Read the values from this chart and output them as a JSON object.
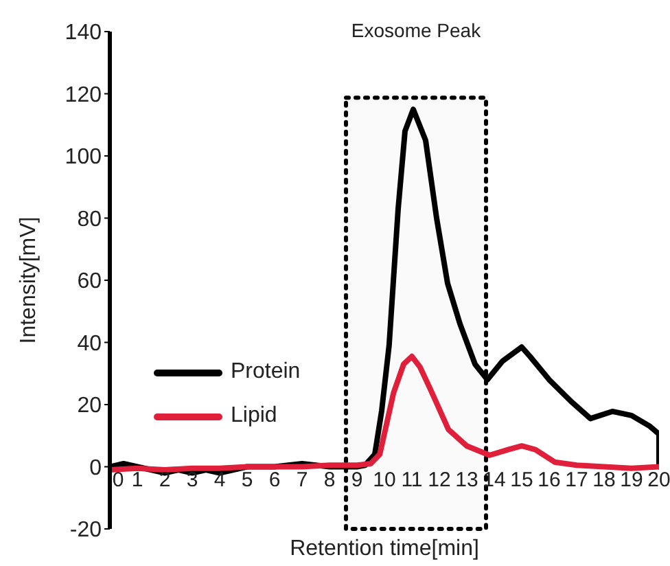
{
  "chart_data": {
    "type": "line",
    "xlabel": "Retention time[min]",
    "ylabel": "Intensity[mV]",
    "xlim": [
      0,
      20
    ],
    "xticks": [
      0,
      1,
      2,
      3,
      4,
      5,
      6,
      7,
      8,
      9,
      10,
      11,
      12,
      13,
      14,
      15,
      16,
      17,
      18,
      19,
      20
    ],
    "ylim": [
      -20,
      140
    ],
    "yticks": [
      -20,
      0,
      20,
      40,
      60,
      80,
      100,
      120,
      140
    ],
    "legend": "bottom left",
    "marker": "none",
    "line_style": "solid",
    "bands": [
      {
        "axis": "x",
        "from": 8.6,
        "to": 13.7,
        "label": "Exosome Peak",
        "color": "#000000"
      }
    ],
    "series": [
      {
        "name": "Protein",
        "color": "#000000",
        "x": [
          0,
          0.5,
          1,
          1.5,
          2,
          2.5,
          3,
          3.5,
          4,
          4.5,
          5,
          6,
          7,
          8,
          8.5,
          9,
          9.3,
          9.65,
          9.9,
          10.17,
          10.5,
          10.75,
          11.05,
          11.5,
          11.9,
          12.3,
          12.75,
          13.3,
          13.75,
          14.3,
          15,
          15.3,
          16,
          16.8,
          17.5,
          18.3,
          19,
          19.67,
          20,
          20
        ],
        "values": [
          0,
          1,
          0,
          -1,
          -2,
          -1,
          -2,
          -1,
          -2,
          -1,
          0,
          0,
          1,
          0,
          0,
          0,
          0.5,
          4,
          18,
          39,
          83,
          108,
          115,
          105,
          80,
          59,
          46,
          33,
          28,
          34,
          38.5,
          35.5,
          28,
          21,
          15.5,
          17.8,
          16.5,
          13,
          10.5,
          0
        ]
      },
      {
        "name": "Lipid",
        "color": "#e0203a",
        "x": [
          0,
          1,
          2,
          3,
          4,
          5,
          6,
          7,
          8,
          8.5,
          9,
          9.5,
          9.83,
          10.33,
          10.7,
          11,
          11.3,
          11.67,
          12.33,
          13,
          13.83,
          14.5,
          15,
          15.5,
          16.2,
          17,
          18,
          19,
          20
        ],
        "values": [
          -1,
          -0.5,
          -1,
          -0.5,
          -0.5,
          0,
          0,
          0,
          0.5,
          0.5,
          0.5,
          1,
          4,
          23.7,
          33,
          35.5,
          32,
          25,
          12,
          6.7,
          3.7,
          5.5,
          6.7,
          5.5,
          1.5,
          0.5,
          0,
          -0.5,
          0
        ]
      }
    ]
  }
}
